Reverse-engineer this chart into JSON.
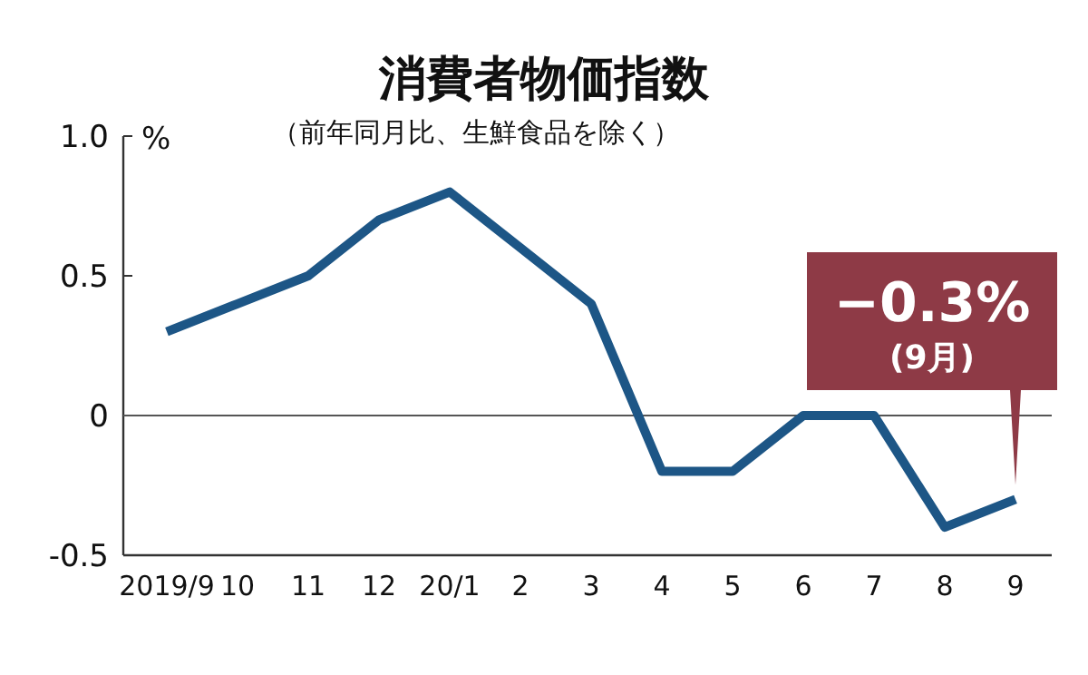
{
  "chart_data": {
    "type": "line",
    "title": "消費者物価指数",
    "subtitle": "（前年同月比、生鮮食品を除く）",
    "ylabel": "%",
    "categories": [
      "2019/9",
      "10",
      "11",
      "12",
      "20/1",
      "2",
      "3",
      "4",
      "5",
      "6",
      "7",
      "8",
      "9"
    ],
    "series": [
      {
        "color": "#1d5686",
        "values": [
          0.3,
          0.4,
          0.5,
          0.7,
          0.8,
          0.6,
          0.4,
          -0.2,
          -0.2,
          0,
          0,
          -0.4,
          -0.3
        ]
      }
    ],
    "ylim": [
      -0.5,
      1.0
    ],
    "yticks": [
      {
        "value": -0.5,
        "label": "-0.5"
      },
      0,
      0.5,
      {
        "value": 1.0,
        "label": "1.0"
      }
    ],
    "ref_lines": [
      {
        "axis": "y",
        "value": 0,
        "color": "#555555"
      }
    ],
    "grid": false,
    "marker": "none",
    "line_style": "solid",
    "annotations": [
      {
        "text": "−0.3%\n(9月)",
        "x": "9",
        "y": -0.3
      }
    ]
  }
}
